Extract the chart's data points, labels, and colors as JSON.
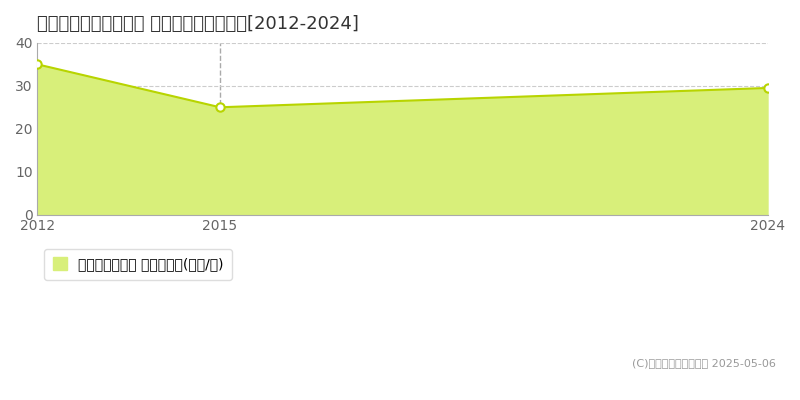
{
  "title": "仙台市青葉区千代田町 マンション価格推移[2012-2024]",
  "years": [
    2012,
    2015,
    2024
  ],
  "values": [
    35.0,
    25.0,
    29.5
  ],
  "fill_color": "#d8ef7a",
  "line_color": "#b8d400",
  "marker_color": "#ffffff",
  "marker_edge_color": "#b8d400",
  "grid_color": "#cccccc",
  "vline_color": "#aaaaaa",
  "vline_x": 2015,
  "xlim": [
    2012,
    2024
  ],
  "ylim": [
    0,
    40
  ],
  "yticks": [
    0,
    10,
    20,
    30,
    40
  ],
  "xticks": [
    2012,
    2015,
    2024
  ],
  "legend_label": "マンション価格 平均坪単価(万円/坪)",
  "copyright_text": "(C)土地価格ドットコム 2025-05-06",
  "background_color": "#ffffff",
  "title_fontsize": 13,
  "axis_label_fontsize": 10,
  "legend_fontsize": 10,
  "copyright_fontsize": 8
}
